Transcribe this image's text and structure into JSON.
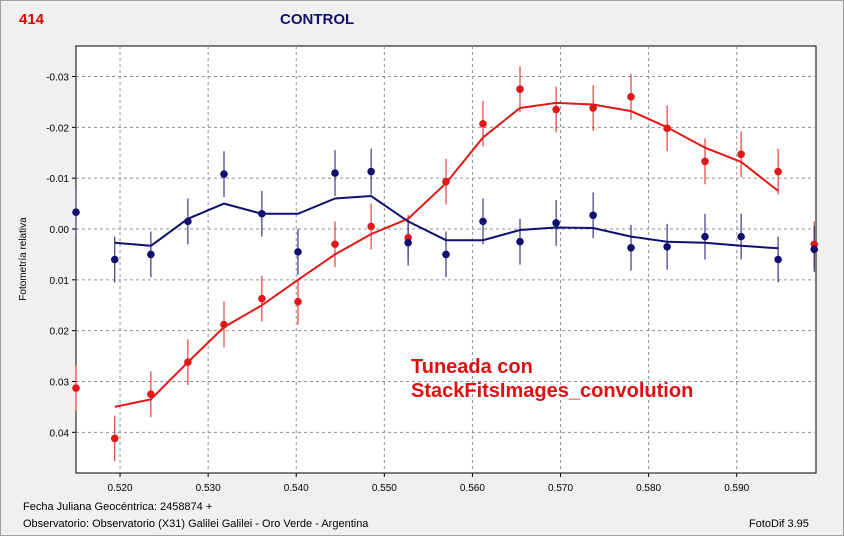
{
  "header": {
    "star_id": "414",
    "title": "CONTROL"
  },
  "footer": {
    "julian": "Fecha Juliana Geocéntrica: 2458874 +",
    "observer": "Observatorio: Observatorio (X31) Galilei Galilei - Oro Verde - Argentina",
    "software": "FotoDif 3.95"
  },
  "chart_data": {
    "type": "scatter",
    "title": "CONTROL",
    "xlabel": "",
    "ylabel": "Fotometría relativa",
    "xlim": [
      0.515,
      0.599
    ],
    "ylim": [
      0.048,
      -0.036
    ],
    "y_inverted": true,
    "grid": true,
    "x_ticks": [
      "0.520",
      "0.530",
      "0.540",
      "0.550",
      "0.560",
      "0.570",
      "0.580",
      "0.590"
    ],
    "x_tick_values": [
      0.52,
      0.53,
      0.54,
      0.55,
      0.56,
      0.57,
      0.58,
      0.59
    ],
    "y_ticks": [
      "-0.03",
      "-0.02",
      "-0.01",
      "0.00",
      "0.01",
      "0.02",
      "0.03",
      "0.04"
    ],
    "y_tick_values": [
      -0.03,
      -0.02,
      -0.01,
      0.0,
      0.01,
      0.02,
      0.03,
      0.04
    ],
    "annotations": [
      "Tuneada con",
      "StackFitsImages_convolution"
    ],
    "series": [
      {
        "color": "#e01818",
        "points": [
          {
            "x": 0.515,
            "y": 0.0313,
            "err": 0.0045
          },
          {
            "x": 0.5194,
            "y": 0.0412,
            "err": 0.0045
          },
          {
            "x": 0.5235,
            "y": 0.0325,
            "err": 0.0045
          },
          {
            "x": 0.5277,
            "y": 0.0262,
            "err": 0.0045
          },
          {
            "x": 0.5318,
            "y": 0.0188,
            "err": 0.0045
          },
          {
            "x": 0.5361,
            "y": 0.0137,
            "err": 0.0045
          },
          {
            "x": 0.5402,
            "y": 0.0143,
            "err": 0.0045
          },
          {
            "x": 0.5444,
            "y": 0.003,
            "err": 0.0045
          },
          {
            "x": 0.5485,
            "y": -0.0005,
            "err": 0.0045
          },
          {
            "x": 0.5527,
            "y": 0.0017,
            "err": 0.0045
          },
          {
            "x": 0.557,
            "y": -0.0093,
            "err": 0.0045
          },
          {
            "x": 0.5612,
            "y": -0.0207,
            "err": 0.0045
          },
          {
            "x": 0.5654,
            "y": -0.0275,
            "err": 0.0045
          },
          {
            "x": 0.5695,
            "y": -0.0235,
            "err": 0.0045
          },
          {
            "x": 0.5737,
            "y": -0.0238,
            "err": 0.0045
          },
          {
            "x": 0.578,
            "y": -0.026,
            "err": 0.0045
          },
          {
            "x": 0.5821,
            "y": -0.0198,
            "err": 0.0045
          },
          {
            "x": 0.5864,
            "y": -0.0133,
            "err": 0.0045
          },
          {
            "x": 0.5905,
            "y": -0.0147,
            "err": 0.0045
          },
          {
            "x": 0.5947,
            "y": -0.0113,
            "err": 0.0045
          },
          {
            "x": 0.5988,
            "y": 0.003,
            "err": 0.0045
          }
        ],
        "fit": {
          "x": [
            0.5194,
            0.5235,
            0.5277,
            0.5318,
            0.5361,
            0.5402,
            0.5444,
            0.5485,
            0.5527,
            0.557,
            0.5612,
            0.5654,
            0.5695,
            0.5737,
            0.578,
            0.5821,
            0.5864,
            0.5905,
            0.5947
          ],
          "y": [
            0.035,
            0.0335,
            0.0262,
            0.0193,
            0.015,
            0.01,
            0.005,
            0.001,
            -0.002,
            -0.009,
            -0.018,
            -0.0238,
            -0.0248,
            -0.0245,
            -0.0232,
            -0.02,
            -0.016,
            -0.0132,
            -0.0075
          ]
        }
      },
      {
        "color": "#101070",
        "points": [
          {
            "x": 0.515,
            "y": -0.0033,
            "err": 0.0045
          },
          {
            "x": 0.5194,
            "y": 0.006,
            "err": 0.0045
          },
          {
            "x": 0.5235,
            "y": 0.005,
            "err": 0.0045
          },
          {
            "x": 0.5277,
            "y": -0.0015,
            "err": 0.0045
          },
          {
            "x": 0.5318,
            "y": -0.0108,
            "err": 0.0045
          },
          {
            "x": 0.5361,
            "y": -0.003,
            "err": 0.0045
          },
          {
            "x": 0.5402,
            "y": 0.0045,
            "err": 0.0045
          },
          {
            "x": 0.5444,
            "y": -0.011,
            "err": 0.0045
          },
          {
            "x": 0.5485,
            "y": -0.0113,
            "err": 0.0045
          },
          {
            "x": 0.5527,
            "y": 0.0027,
            "err": 0.0045
          },
          {
            "x": 0.557,
            "y": 0.005,
            "err": 0.0045
          },
          {
            "x": 0.5612,
            "y": -0.0015,
            "err": 0.0045
          },
          {
            "x": 0.5654,
            "y": 0.0025,
            "err": 0.0045
          },
          {
            "x": 0.5695,
            "y": -0.0012,
            "err": 0.0045
          },
          {
            "x": 0.5737,
            "y": -0.0027,
            "err": 0.0045
          },
          {
            "x": 0.578,
            "y": 0.0037,
            "err": 0.0045
          },
          {
            "x": 0.5821,
            "y": 0.0035,
            "err": 0.0045
          },
          {
            "x": 0.5864,
            "y": 0.0015,
            "err": 0.0045
          },
          {
            "x": 0.5905,
            "y": 0.0015,
            "err": 0.0045
          },
          {
            "x": 0.5947,
            "y": 0.006,
            "err": 0.0045
          },
          {
            "x": 0.5988,
            "y": 0.004,
            "err": 0.0045
          }
        ],
        "fit": {
          "x": [
            0.5194,
            0.5235,
            0.5277,
            0.5318,
            0.5361,
            0.5402,
            0.5444,
            0.5485,
            0.5527,
            0.557,
            0.5612,
            0.5654,
            0.5695,
            0.5737,
            0.578,
            0.5821,
            0.5864,
            0.5905,
            0.5947
          ],
          "y": [
            0.0027,
            0.0033,
            -0.002,
            -0.005,
            -0.003,
            -0.003,
            -0.006,
            -0.0065,
            -0.0015,
            0.0022,
            0.0022,
            0.0002,
            -0.0003,
            -0.0002,
            0.0015,
            0.0025,
            0.0027,
            0.0033,
            0.0038
          ]
        }
      }
    ]
  }
}
